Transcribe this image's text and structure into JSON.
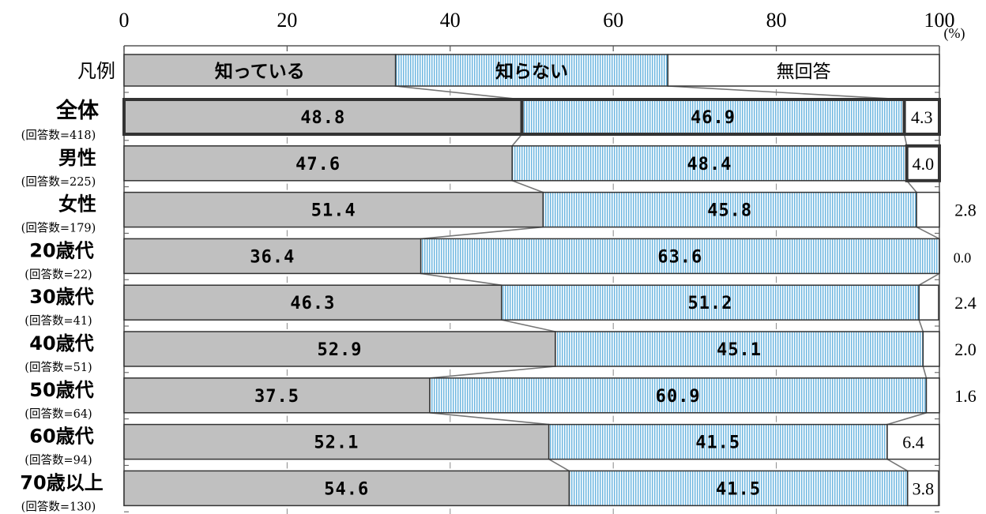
{
  "chart_data": {
    "type": "bar",
    "orientation": "horizontal",
    "stacked": true,
    "unit_label": "(%)",
    "xlim": [
      0,
      100
    ],
    "x_ticks": [
      "0",
      "20",
      "40",
      "60",
      "80",
      "100"
    ],
    "legend": {
      "label": "凡例",
      "entries": [
        "知っている",
        "知らない",
        "無回答"
      ]
    },
    "categories": [
      {
        "label": "全体",
        "sub": "(回答数=418)"
      },
      {
        "label": "男性",
        "sub": "(回答数=225)"
      },
      {
        "label": "女性",
        "sub": "(回答数=179)"
      },
      {
        "label": "20歳代",
        "sub": "(回答数=22)"
      },
      {
        "label": "30歳代",
        "sub": "(回答数=41)"
      },
      {
        "label": "40歳代",
        "sub": "(回答数=51)"
      },
      {
        "label": "50歳代",
        "sub": "(回答数=64)"
      },
      {
        "label": "60歳代",
        "sub": "(回答数=94)"
      },
      {
        "label": "70歳以上",
        "sub": "(回答数=130)"
      }
    ],
    "series": [
      {
        "name": "知っている",
        "color": "#c0c0c0",
        "values": [
          48.8,
          47.6,
          51.4,
          36.4,
          46.3,
          52.9,
          37.5,
          52.1,
          54.6
        ],
        "labels": [
          "48.8",
          "47.6",
          "51.4",
          "36.4",
          "46.3",
          "52.9",
          "37.5",
          "52.1",
          "54.6"
        ]
      },
      {
        "name": "知らない",
        "color": "#a8d8f0",
        "values": [
          46.9,
          48.4,
          45.8,
          63.6,
          51.2,
          45.1,
          60.9,
          41.5,
          41.5
        ],
        "labels": [
          "46.9",
          "48.4",
          "45.8",
          "63.6",
          "51.2",
          "45.1",
          "60.9",
          "41.5",
          "41.5"
        ]
      },
      {
        "name": "無回答",
        "color": "#ffffff",
        "values": [
          4.3,
          4.0,
          2.8,
          0.0,
          2.4,
          2.0,
          1.6,
          6.4,
          3.8
        ],
        "labels": [
          "4.3",
          "4.0",
          "2.8",
          "0.0",
          "2.4",
          "2.0",
          "1.6",
          "6.4",
          "3.8"
        ]
      }
    ],
    "grid": false
  }
}
